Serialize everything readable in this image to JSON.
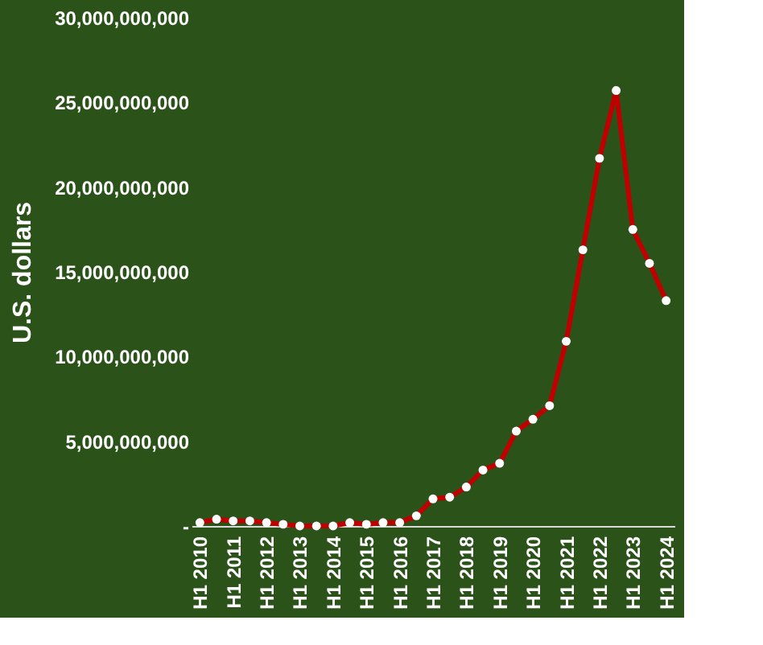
{
  "chart_data": {
    "type": "line",
    "ylabel": "U.S. dollars",
    "categories": [
      "H1 2010",
      null,
      "H1 2011",
      null,
      "H1 2012",
      null,
      "H1 2013",
      null,
      "H1 2014",
      null,
      "H1 2015",
      null,
      "H1 2016",
      null,
      "H1 2017",
      null,
      "H1 2018",
      null,
      "H1 2019",
      null,
      "H1 2020",
      null,
      "H1 2021",
      null,
      "H1 2022",
      null,
      "H1 2023",
      null,
      "H1 2024"
    ],
    "series": [
      {
        "color": "#c00000",
        "values": [
          200000000,
          400000000,
          300000000,
          300000000,
          200000000,
          100000000,
          0,
          0,
          0,
          200000000,
          100000000,
          200000000,
          200000000,
          600000000,
          1600000000,
          1700000000,
          2300000000,
          3300000000,
          3700000000,
          5600000000,
          6300000000,
          7100000000,
          10900000000,
          16300000000,
          21700000000,
          25700000000,
          17500000000,
          15500000000,
          13300000000
        ]
      }
    ],
    "ylim": [
      0,
      30000000000
    ],
    "yticks": [
      {
        "value": 0,
        "label": "-"
      },
      {
        "value": 5000000000,
        "label": "5,000,000,000"
      },
      {
        "value": 10000000000,
        "label": "10,000,000,000"
      },
      {
        "value": 15000000000,
        "label": "15,000,000,000"
      },
      {
        "value": 20000000000,
        "label": "20,000,000,000"
      },
      {
        "value": 25000000000,
        "label": "25,000,000,000"
      },
      {
        "value": 30000000000,
        "label": "30,000,000,000"
      }
    ],
    "grid": false,
    "marker": "circle",
    "line_style": "solid"
  }
}
